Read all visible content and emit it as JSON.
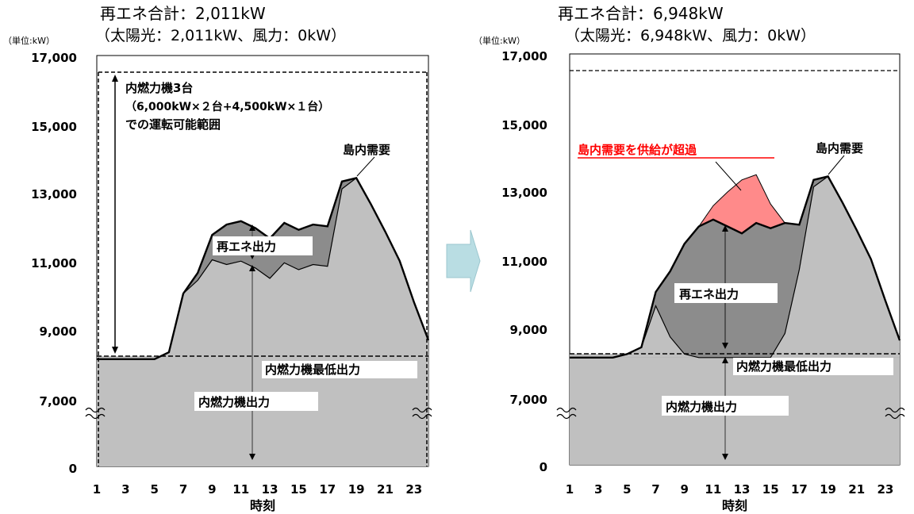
{
  "chart_data": [
    {
      "type": "area",
      "title": "再エネ合計：2,011kW",
      "subtitle": "（太陽光：2,011kW、風力：0kW）",
      "unit_label": "（単位:kW）",
      "xlabel": "時刻",
      "x_ticks": [
        "1",
        "3",
        "5",
        "7",
        "9",
        "11",
        "13",
        "15",
        "17",
        "19",
        "21",
        "23"
      ],
      "y_ticks": [
        "17,000",
        "15,000",
        "13,000",
        "11,000",
        "9,000",
        "7,000",
        "0"
      ],
      "x": [
        1,
        2,
        3,
        4,
        5,
        6,
        7,
        8,
        9,
        10,
        11,
        12,
        13,
        14,
        15,
        16,
        17,
        18,
        19,
        20,
        21,
        22,
        23,
        24
      ],
      "series": [
        {
          "name": "島内需要",
          "values": [
            8200,
            8200,
            8200,
            8200,
            8200,
            8400,
            10100,
            10700,
            11800,
            12100,
            12200,
            12000,
            11700,
            12150,
            11950,
            12100,
            12050,
            13350,
            13450,
            12700,
            11900,
            11050,
            9850,
            8750
          ]
        },
        {
          "name": "再エネ出力",
          "values": [
            0,
            0,
            0,
            0,
            0,
            0,
            0,
            215,
            719,
            1158,
            1158,
            1158,
            1158,
            1158,
            1158,
            1158,
            1158,
            215,
            0,
            0,
            0,
            0,
            0,
            0
          ]
        },
        {
          "name": "内燃力機出力",
          "values": [
            8200,
            8200,
            8200,
            8200,
            8200,
            8400,
            10100,
            10485,
            11081,
            10942,
            11042,
            10842,
            10542,
            10992,
            10792,
            10942,
            10892,
            13135,
            13450,
            12700,
            11900,
            11050,
            9850,
            8750
          ]
        }
      ],
      "annotations": [
        "内燃力機3台",
        "（6,000kW×２台+4,500kW×１台）",
        "での運転可能範囲",
        "島内需要",
        "再エネ出力",
        "内燃力機最低出力",
        "内燃力機出力"
      ],
      "reference_lines": [
        {
          "name": "内燃力機最低出力",
          "value": 8200
        },
        {
          "name": "内燃力機3台運転可能上限",
          "value": 16500
        }
      ]
    },
    {
      "type": "area",
      "title": "再エネ合計：6,948kW",
      "subtitle": "（太陽光：6,948kW、風力：0kW）",
      "unit_label": "（単位:kW）",
      "xlabel": "時刻",
      "x_ticks": [
        "1",
        "3",
        "5",
        "7",
        "9",
        "11",
        "13",
        "15",
        "17",
        "19",
        "21",
        "23"
      ],
      "y_ticks": [
        "17,000",
        "15,000",
        "13,000",
        "11,000",
        "9,000",
        "7,000",
        "0"
      ],
      "x": [
        1,
        2,
        3,
        4,
        5,
        6,
        7,
        8,
        9,
        10,
        11,
        12,
        13,
        14,
        15,
        16,
        17,
        18,
        19,
        20,
        21,
        22,
        23,
        24
      ],
      "series": [
        {
          "name": "島内需要",
          "values": [
            8200,
            8200,
            8200,
            8200,
            8300,
            8500,
            10100,
            10700,
            11500,
            12000,
            12200,
            12000,
            11800,
            12100,
            11950,
            12100,
            12050,
            13350,
            13450,
            12700,
            11900,
            11050,
            9850,
            8700
          ]
        },
        {
          "name": "再エネ出力",
          "values": [
            0,
            0,
            0,
            0,
            0,
            0,
            400,
            1900,
            3200,
            4300,
            5000,
            5500,
            5600,
            5400,
            4400,
            3200,
            1300,
            200,
            0,
            0,
            0,
            0,
            0,
            0
          ]
        },
        {
          "name": "島内需要を供給が超過",
          "values": [
            0,
            0,
            0,
            0,
            0,
            0,
            0,
            0,
            0,
            0,
            400,
            1000,
            1550,
            1400,
            700,
            0,
            0,
            0,
            0,
            0,
            0,
            0,
            0,
            0
          ]
        }
      ],
      "annotations": [
        "島内需要を供給が超過",
        "島内需要",
        "再エネ出力",
        "内燃力機最低出力",
        "内燃力機出力"
      ],
      "reference_lines": [
        {
          "name": "内燃力機最低出力",
          "value": 8200
        },
        {
          "name": "内燃力機3台運転可能上限",
          "value": 16500
        }
      ]
    }
  ],
  "arrow": {
    "color": "#b9dde3",
    "icon": "right-arrow-icon"
  },
  "colors": {
    "light_gray": "#c0c0c0",
    "dark_gray": "#8c8c8c",
    "surplus": "#ff8a8a",
    "surplus_text": "#ff0000"
  }
}
